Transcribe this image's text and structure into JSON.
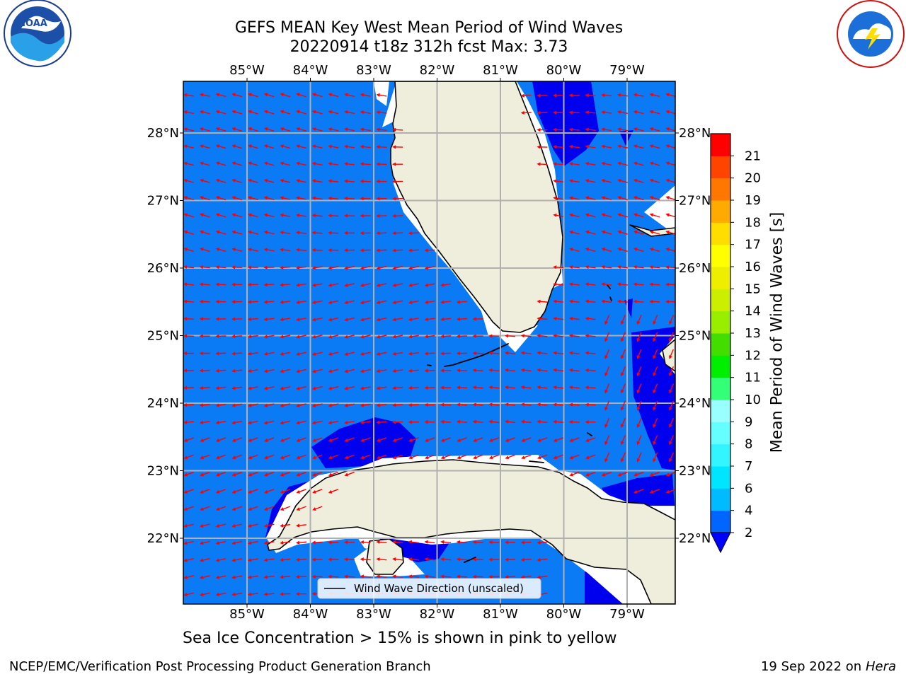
{
  "title_line1": "GEFS MEAN Key West Mean Period of Wind Waves",
  "title_line2": "20220914 t18z 312h fcst   Max: 3.73",
  "subtitle": "Sea Ice Concentration > 15% is shown in pink to yellow",
  "footer_left": "NCEP/EMC/Verification Post Processing Product Generation Branch",
  "footer_right_date": "19 Sep 2022 on",
  "footer_right_host": "Hera",
  "legend_label": "Wind Wave Direction (unscaled)",
  "colorbar": {
    "title": "Mean Period of Wind Waves [s]",
    "ticks": [
      "2",
      "4",
      "6",
      "7",
      "8",
      "9",
      "10",
      "11",
      "12",
      "13",
      "14",
      "15",
      "16",
      "17",
      "18",
      "19",
      "20",
      "21"
    ],
    "colors": [
      "#0066ff",
      "#00bbff",
      "#00e5ff",
      "#33f5ff",
      "#66ffff",
      "#99ffff",
      "#33ff77",
      "#00ee00",
      "#44dd00",
      "#99ee00",
      "#ccee00",
      "#eeee00",
      "#ffff00",
      "#ffdd00",
      "#ffaa00",
      "#ff7700",
      "#ff4400",
      "#ff0000"
    ],
    "extend_color": "#0000ff"
  },
  "map": {
    "lon_labels": [
      "85°W",
      "84°W",
      "83°W",
      "82°W",
      "81°W",
      "80°W",
      "79°W"
    ],
    "lat_labels": [
      "28°N",
      "27°N",
      "26°N",
      "25°N",
      "24°N",
      "23°N",
      "22°N"
    ],
    "ocean_color": "#0a7af5",
    "dark_color": "#0000ee",
    "land_color": "#efeedd",
    "arrow_color": "#ff0000",
    "grid_color": "#b0b0b0"
  }
}
